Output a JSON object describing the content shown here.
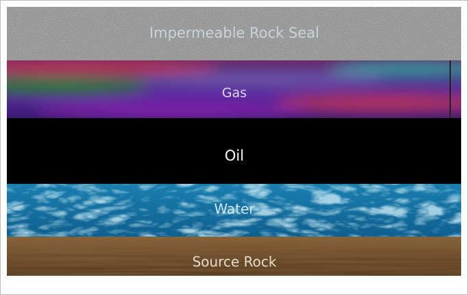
{
  "layers": [
    {
      "label": "Impermeable Rock Seal"
    },
    {
      "label": "Gas"
    },
    {
      "label": "Oil"
    },
    {
      "label": "Water"
    },
    {
      "label": "Source Rock"
    }
  ]
}
